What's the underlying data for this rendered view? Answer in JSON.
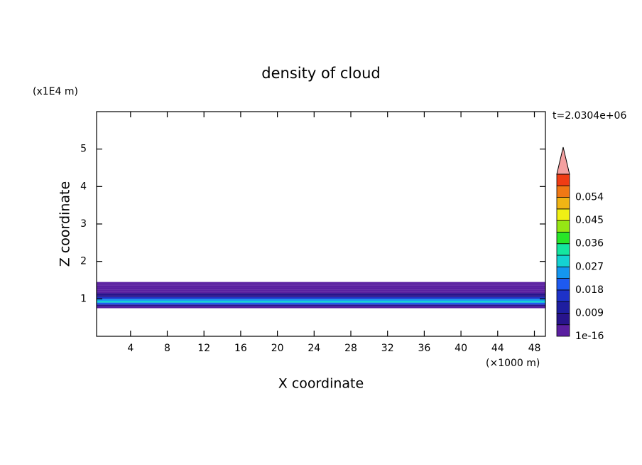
{
  "chart_data": {
    "type": "contour",
    "title": "density of cloud",
    "x_label": "X coordinate",
    "y_label": "Z coordinate",
    "x_unit": "(×1000 m)",
    "y_unit": "(x1E4 m)",
    "annotation": "t=2.0304e+06",
    "xlim": [
      0.3,
      49.2
    ],
    "xticks": [
      4,
      8,
      12,
      16,
      20,
      24,
      28,
      32,
      36,
      40,
      44,
      48
    ],
    "ylim": [
      0,
      6
    ],
    "yticks": [
      1,
      2,
      3,
      4,
      5
    ],
    "z": [
      0.75,
      0.8,
      0.85,
      0.9,
      0.95,
      1.0,
      1.05,
      1.1,
      1.15,
      1.2,
      1.25,
      1.3,
      1.35,
      1.4,
      1.45
    ],
    "values": [
      0.003,
      0.008,
      0.02,
      0.03,
      0.025,
      0.014,
      0.008,
      0.005,
      0.003,
      0.002,
      0.002,
      0.002,
      0.002,
      0.002
    ],
    "clim": [
      0,
      0.063
    ],
    "levels": [
      0,
      0.0045,
      0.009,
      0.0135,
      0.018,
      0.0225,
      0.027,
      0.0315,
      0.036,
      0.0405,
      0.045,
      0.0495,
      0.054,
      0.0585,
      0.063
    ],
    "colors": [
      "#5a1fa0",
      "#28148c",
      "#1e1ea0",
      "#1e32c8",
      "#1e5af0",
      "#1496f0",
      "#14d2d2",
      "#14e6a0",
      "#28e628",
      "#96e614",
      "#f0f014",
      "#f0b414",
      "#f07814",
      "#f03c14"
    ],
    "extend_color": "#f4a0a0",
    "cticks": [
      1e-16,
      0.009,
      0.018,
      0.027,
      0.036,
      0.045,
      0.054
    ]
  }
}
